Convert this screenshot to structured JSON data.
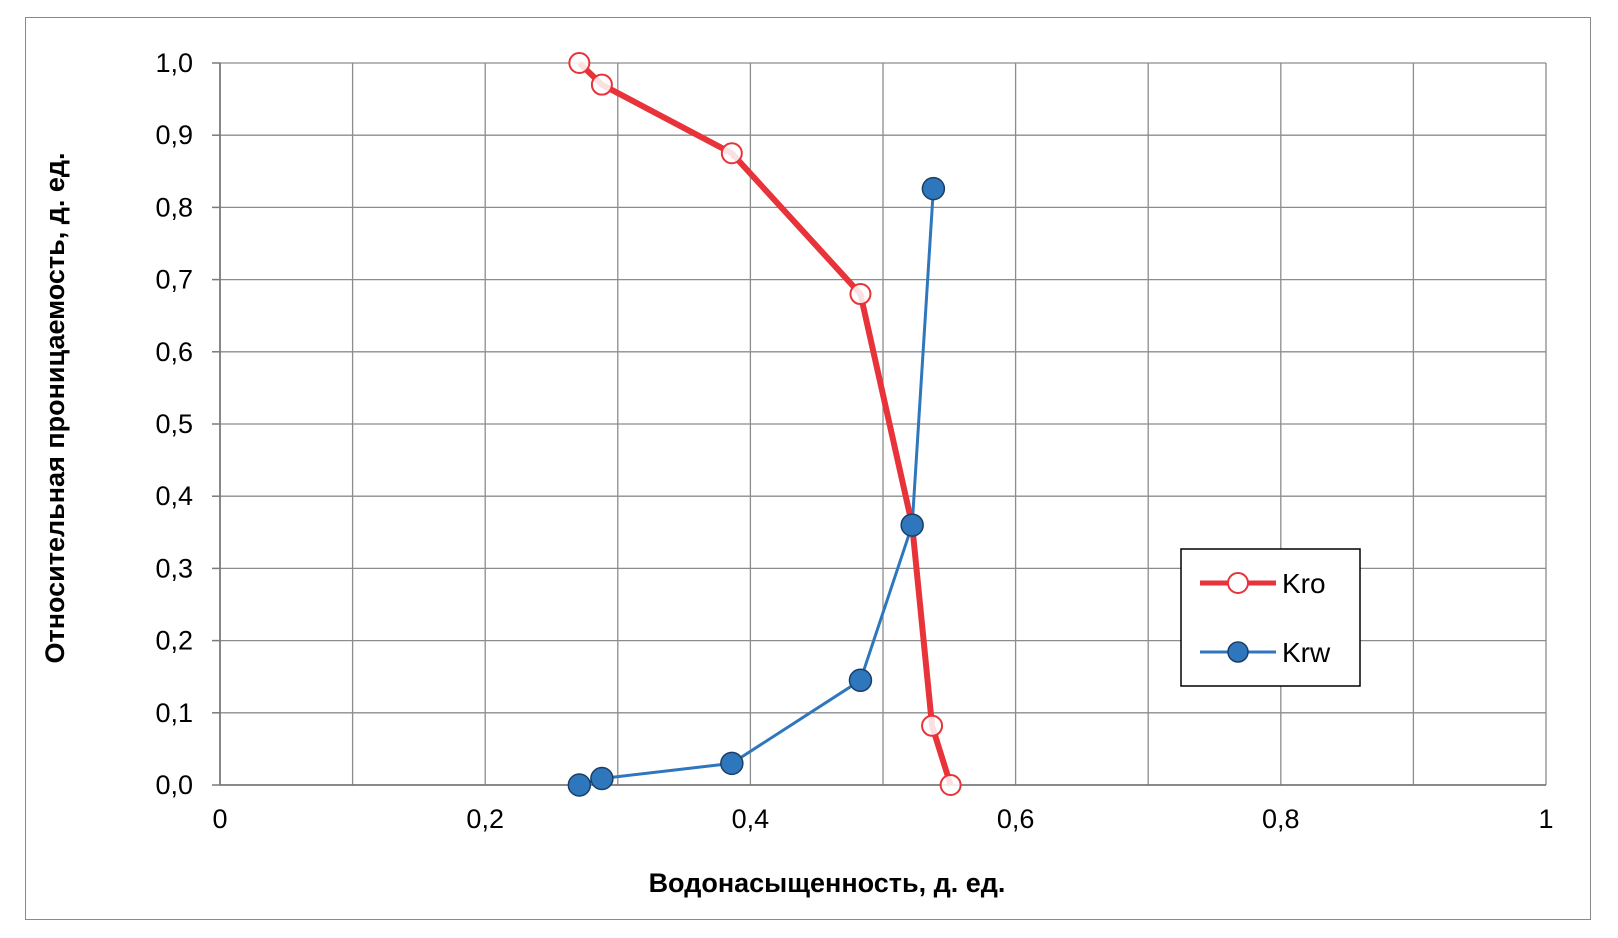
{
  "chart_data": {
    "type": "scatter",
    "xlabel": "Водонасыщенность, д. ед.",
    "ylabel": "Относительная проницаемость, д. ед.",
    "xlim": [
      0,
      1
    ],
    "ylim": [
      0,
      1
    ],
    "x_ticks": [
      0,
      0.2,
      0.4,
      0.6,
      0.8,
      1
    ],
    "x_tick_labels": [
      "0",
      "0,2",
      "0,4",
      "0,6",
      "0,8",
      "1"
    ],
    "y_ticks": [
      0,
      0.1,
      0.2,
      0.3,
      0.4,
      0.5,
      0.6,
      0.7,
      0.8,
      0.9,
      1.0
    ],
    "y_tick_labels": [
      "0,0",
      "0,1",
      "0,2",
      "0,3",
      "0,4",
      "0,5",
      "0,6",
      "0,7",
      "0,8",
      "0,9",
      "1,0"
    ],
    "x_grid_step": 0.1,
    "grid": true,
    "legend_position": "right",
    "series": [
      {
        "name": "Kro",
        "color": "#e8333a",
        "marker": "open-circle",
        "x": [
          0.271,
          0.288,
          0.386,
          0.483,
          0.522,
          0.537,
          0.551
        ],
        "y": [
          1.0,
          0.97,
          0.875,
          0.68,
          0.36,
          0.082,
          0.0
        ]
      },
      {
        "name": "Krw",
        "color": "#2f77bd",
        "marker": "filled-circle",
        "x": [
          0.271,
          0.288,
          0.386,
          0.483,
          0.522,
          0.538
        ],
        "y": [
          0.0,
          0.009,
          0.03,
          0.145,
          0.36,
          0.826
        ]
      }
    ]
  }
}
